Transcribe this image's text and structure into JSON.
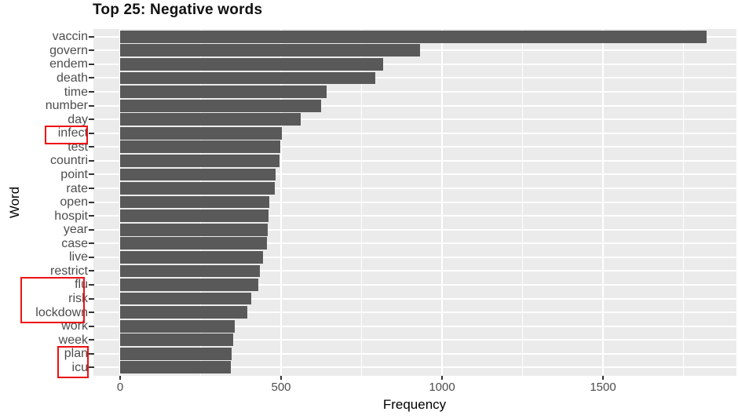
{
  "chart_data": {
    "type": "bar",
    "orientation": "horizontal",
    "title": "Top 25: Negative words",
    "xlabel": "Frequency",
    "ylabel": "Word",
    "xlim": [
      0,
      1912
    ],
    "x_major_ticks": [
      0,
      500,
      1000,
      1500
    ],
    "x_minor_gridlines": [
      250,
      750,
      1250,
      1750
    ],
    "grid": true,
    "legend": false,
    "bar_color": "#595959",
    "panel_background": "#ebebeb",
    "gridline_color": "#ffffff",
    "tick_label_color": "#4d4d4d",
    "annotation_color": "#ee1111",
    "categories": [
      "vaccin",
      "govern",
      "endem",
      "death",
      "time",
      "number",
      "day",
      "infect",
      "test",
      "countri",
      "point",
      "rate",
      "open",
      "hospit",
      "year",
      "case",
      "live",
      "restrict",
      "flu",
      "risk",
      "lockdown",
      "work",
      "week",
      "plan",
      "icu"
    ],
    "values": [
      1822,
      932,
      817,
      792,
      641,
      624,
      561,
      502,
      498,
      494,
      484,
      481,
      464,
      461,
      459,
      457,
      443,
      434,
      429,
      408,
      394,
      356,
      352,
      346,
      344
    ],
    "annotations": [
      {
        "type": "red-box",
        "words": [
          "infect"
        ]
      },
      {
        "type": "red-box",
        "words": [
          "flu",
          "risk",
          "lockdown"
        ]
      },
      {
        "type": "red-box",
        "words": [
          "plan",
          "icu"
        ]
      }
    ]
  }
}
